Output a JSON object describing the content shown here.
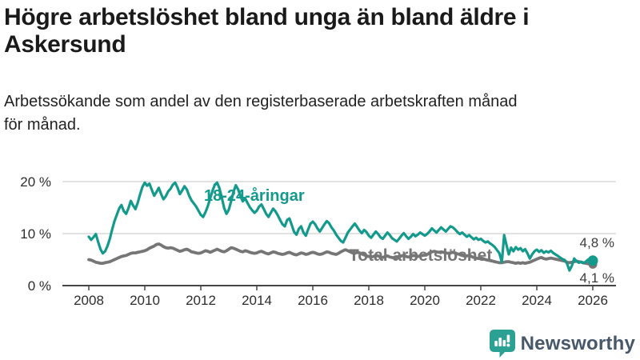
{
  "chart_data": {
    "type": "line",
    "title": "Högre arbetslöshet bland unga än bland äldre i\nAskersund",
    "subtitle": "Arbetssökande som andel av den registerbaserade arbetskraften månad\nför månad.",
    "x_unit": "month",
    "x_start": "2008-01",
    "x_end": "2026-01",
    "x_tick_labels": [
      "2008",
      "2010",
      "2012",
      "2014",
      "2016",
      "2018",
      "2020",
      "2022",
      "2024",
      "2026"
    ],
    "y_tick_labels": [
      {
        "value": 0,
        "label": "0 %"
      },
      {
        "value": 10,
        "label": "10 %"
      },
      {
        "value": 20,
        "label": "20 %"
      }
    ],
    "ylim": [
      0,
      21
    ],
    "grid": "horizontal",
    "legend_position": "inline-labels",
    "series": [
      {
        "name": "18-24-åringar",
        "color": "#139a8c",
        "end_label": "4,8 %",
        "last_value": 4.8,
        "values": [
          9.4,
          8.8,
          9.3,
          9.9,
          8.4,
          7.0,
          6.2,
          6.6,
          7.6,
          9.0,
          10.8,
          12.4,
          13.6,
          14.8,
          15.5,
          14.3,
          13.8,
          14.9,
          16.3,
          15.4,
          14.7,
          16.0,
          17.6,
          19.0,
          19.8,
          19.2,
          19.6,
          18.4,
          17.3,
          18.0,
          18.8,
          17.6,
          16.6,
          17.2,
          18.1,
          18.6,
          19.4,
          19.8,
          18.9,
          17.6,
          18.3,
          19.1,
          18.5,
          17.3,
          16.4,
          15.8,
          15.2,
          14.4,
          13.6,
          13.2,
          14.1,
          15.3,
          16.8,
          18.2,
          19.4,
          19.8,
          18.7,
          16.9,
          14.9,
          13.8,
          14.6,
          16.2,
          18.0,
          19.3,
          18.5,
          17.2,
          16.2,
          16.8,
          15.9,
          15.1,
          14.5,
          14.0,
          14.4,
          15.2,
          15.6,
          14.7,
          13.8,
          13.2,
          14.0,
          14.8,
          14.3,
          13.5,
          12.6,
          11.8,
          11.4,
          12.6,
          12.9,
          11.6,
          10.3,
          9.8,
          10.9,
          11.4,
          10.2,
          9.6,
          10.8,
          11.9,
          12.3,
          11.8,
          11.0,
          10.4,
          11.1,
          11.8,
          12.4,
          12.0,
          11.2,
          10.6,
          9.8,
          9.2,
          8.6,
          8.3,
          9.2,
          10.2,
          10.8,
          11.4,
          11.9,
          11.3,
          10.6,
          10.1,
          10.7,
          10.3,
          9.6,
          9.2,
          9.8,
          10.4,
          9.9,
          9.3,
          9.0,
          9.6,
          10.2,
          9.7,
          9.1,
          8.8,
          8.5,
          9.0,
          9.6,
          10.1,
          9.5,
          9.0,
          9.4,
          9.9,
          9.5,
          9.8,
          10.2,
          9.9,
          9.6,
          9.9,
          10.4,
          11.0,
          10.6,
          10.2,
          10.7,
          11.2,
          10.8,
          10.4,
          10.9,
          11.4,
          11.2,
          10.8,
          10.3,
          9.9,
          10.2,
          9.8,
          9.4,
          9.7,
          9.3,
          8.9,
          9.2,
          8.8,
          9.0,
          8.6,
          8.3,
          8.5,
          8.1,
          7.8,
          7.4,
          6.8,
          6.2,
          4.5,
          9.7,
          7.8,
          6.0,
          7.3,
          6.6,
          7.4,
          6.9,
          7.2,
          6.6,
          7.0,
          6.2,
          5.2,
          6.0,
          6.6,
          6.9,
          6.5,
          6.8,
          6.3,
          6.6,
          6.4,
          6.7,
          6.3,
          6.0,
          5.7,
          5.4,
          5.1,
          4.9,
          4.2,
          2.9,
          3.8,
          5.2,
          4.7,
          4.4,
          4.6,
          4.3,
          4.6,
          5.0,
          4.9,
          4.8
        ]
      },
      {
        "name": "Total arbetslöshet",
        "color": "#767676",
        "end_label": "4,1 %",
        "last_value": 4.1,
        "values": [
          5.0,
          4.9,
          4.7,
          4.5,
          4.4,
          4.3,
          4.3,
          4.4,
          4.5,
          4.6,
          4.8,
          5.0,
          5.2,
          5.4,
          5.6,
          5.7,
          5.8,
          6.0,
          6.2,
          6.3,
          6.3,
          6.4,
          6.5,
          6.6,
          6.7,
          6.9,
          7.2,
          7.4,
          7.6,
          7.9,
          8.0,
          7.8,
          7.5,
          7.3,
          7.2,
          7.3,
          7.2,
          7.0,
          6.8,
          6.6,
          6.7,
          6.9,
          7.0,
          6.8,
          6.5,
          6.4,
          6.3,
          6.2,
          6.3,
          6.5,
          6.7,
          6.6,
          6.4,
          6.6,
          6.8,
          7.0,
          6.8,
          6.6,
          6.5,
          6.7,
          7.0,
          7.3,
          7.2,
          7.0,
          6.8,
          6.6,
          6.5,
          6.7,
          6.6,
          6.4,
          6.3,
          6.2,
          6.3,
          6.5,
          6.6,
          6.4,
          6.2,
          6.1,
          6.3,
          6.5,
          6.4,
          6.2,
          6.1,
          6.0,
          6.1,
          6.3,
          6.4,
          6.2,
          6.0,
          5.9,
          6.1,
          6.3,
          6.2,
          6.0,
          6.1,
          6.3,
          6.4,
          6.3,
          6.1,
          6.0,
          6.1,
          6.3,
          6.5,
          6.4,
          6.2,
          6.1,
          6.0,
          6.2,
          6.5,
          6.7,
          6.9,
          6.7,
          6.5,
          6.3,
          6.2,
          6.4,
          6.3,
          6.1,
          5.9,
          5.7,
          5.6,
          5.5,
          5.6,
          5.8,
          5.7,
          5.5,
          5.4,
          5.6,
          5.7,
          5.5,
          5.4,
          5.3,
          5.4,
          5.5,
          5.7,
          5.8,
          5.6,
          5.5,
          5.6,
          5.8,
          5.7,
          5.6,
          5.7,
          5.8,
          5.9,
          6.0,
          6.2,
          6.5,
          6.6,
          6.5,
          6.4,
          6.5,
          6.4,
          6.3,
          6.2,
          6.3,
          6.4,
          6.3,
          6.1,
          6.0,
          5.9,
          5.8,
          5.7,
          5.8,
          5.6,
          5.4,
          5.3,
          5.2,
          5.3,
          5.2,
          5.0,
          4.9,
          4.8,
          4.7,
          4.6,
          4.5,
          4.4,
          4.4,
          4.5,
          4.6,
          4.6,
          4.5,
          4.4,
          4.3,
          4.4,
          4.3,
          4.4,
          4.3,
          4.4,
          4.5,
          4.7,
          4.9,
          5.1,
          5.3,
          5.4,
          5.2,
          5.1,
          5.2,
          5.3,
          5.2,
          5.1,
          5.0,
          4.9,
          4.8,
          4.7,
          4.5,
          4.4,
          4.5,
          4.6,
          4.7,
          4.6,
          4.5,
          4.4,
          4.3,
          4.2,
          4.1,
          4.1
        ]
      }
    ]
  },
  "colors": {
    "accent_teal": "#139a8c",
    "line_gray": "#767676",
    "axis": "#454545",
    "grid": "#d8d8d8",
    "brand_text": "#46586a"
  },
  "footer": {
    "brand": "Newsworthy"
  }
}
